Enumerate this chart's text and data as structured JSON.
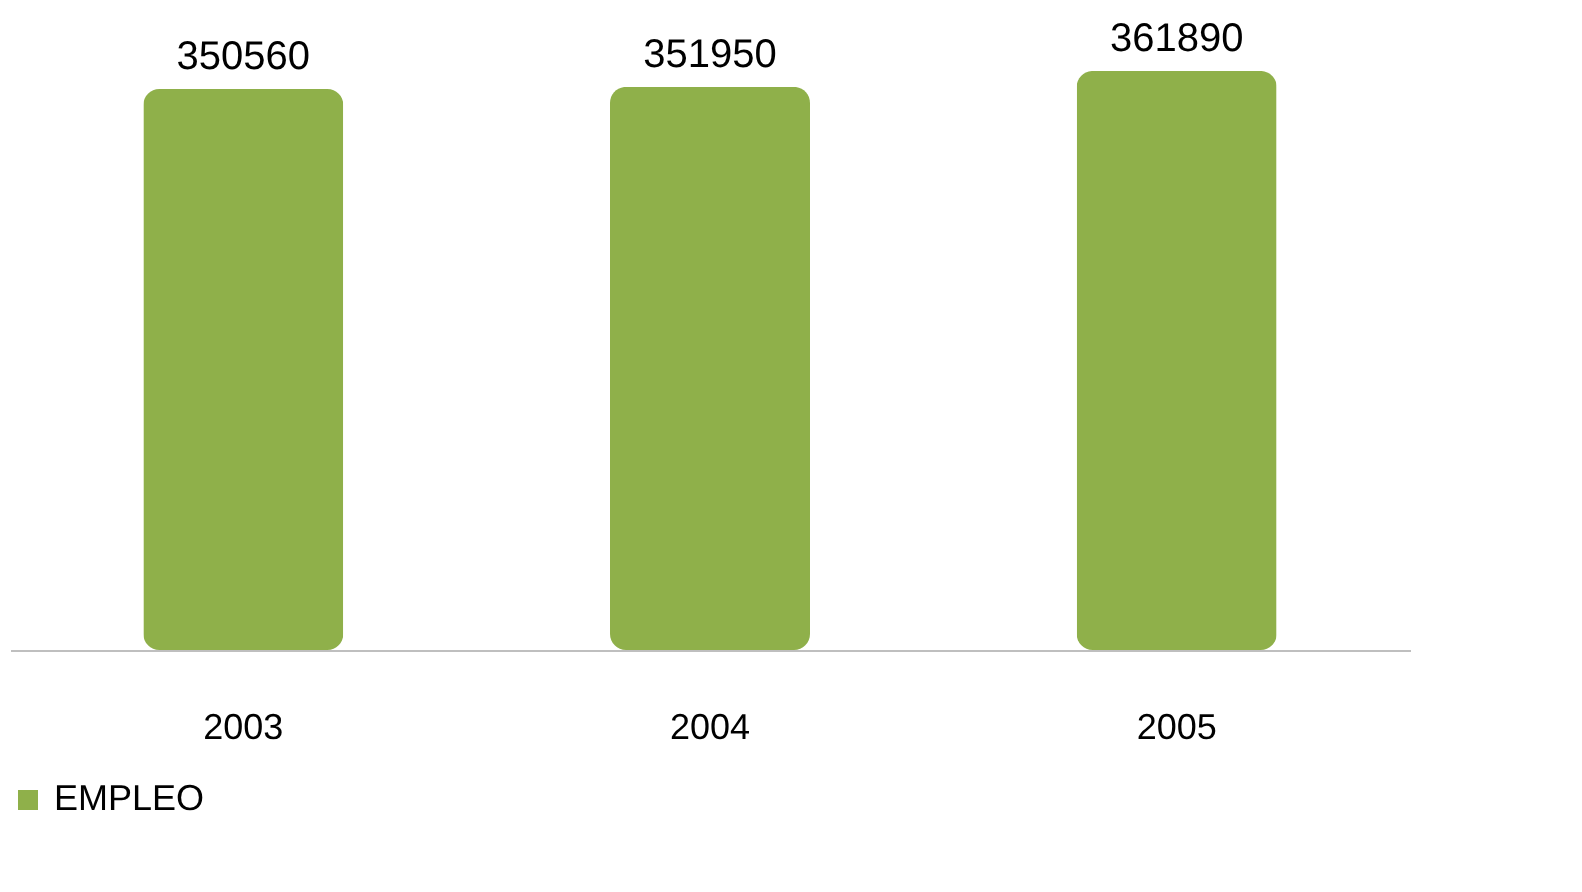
{
  "chart_data": {
    "type": "bar",
    "categories": [
      "2003",
      "2004",
      "2005"
    ],
    "series": [
      {
        "name": "EMPLEO",
        "color": "#8fb04a",
        "values": [
          350560,
          351950,
          361890
        ]
      }
    ],
    "data_labels": true,
    "legend": "bottom"
  }
}
